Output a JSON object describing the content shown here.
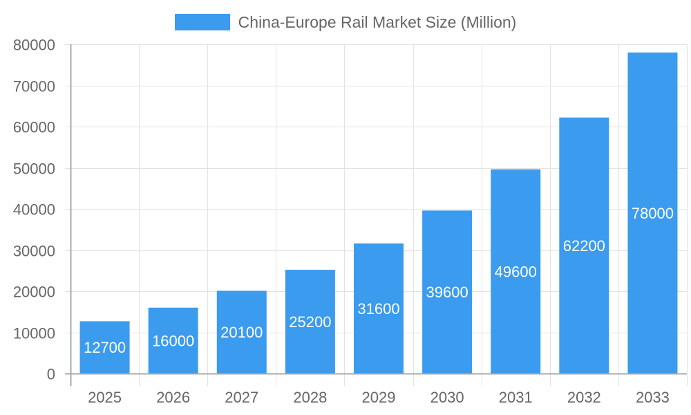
{
  "chart_data": {
    "type": "bar",
    "title": "",
    "legend": [
      {
        "label": "China-Europe Rail Market Size (Million)",
        "color": "#3a9bef"
      }
    ],
    "legend_position": "top",
    "categories": [
      "2025",
      "2026",
      "2027",
      "2028",
      "2029",
      "2030",
      "2031",
      "2032",
      "2033"
    ],
    "series": [
      {
        "name": "China-Europe Rail Market Size (Million)",
        "values": [
          12700,
          16000,
          20100,
          25200,
          31600,
          39600,
          49600,
          62200,
          78000
        ],
        "color": "#3a9bef"
      }
    ],
    "data_labels": [
      "12700",
      "16000",
      "20100",
      "25200",
      "31600",
      "39600",
      "49600",
      "62200",
      "78000"
    ],
    "xlabel": "",
    "ylabel": "",
    "ylim": [
      0,
      80000
    ],
    "yticks": [
      "0",
      "10000",
      "20000",
      "30000",
      "40000",
      "50000",
      "60000",
      "70000",
      "80000"
    ],
    "grid": true
  }
}
